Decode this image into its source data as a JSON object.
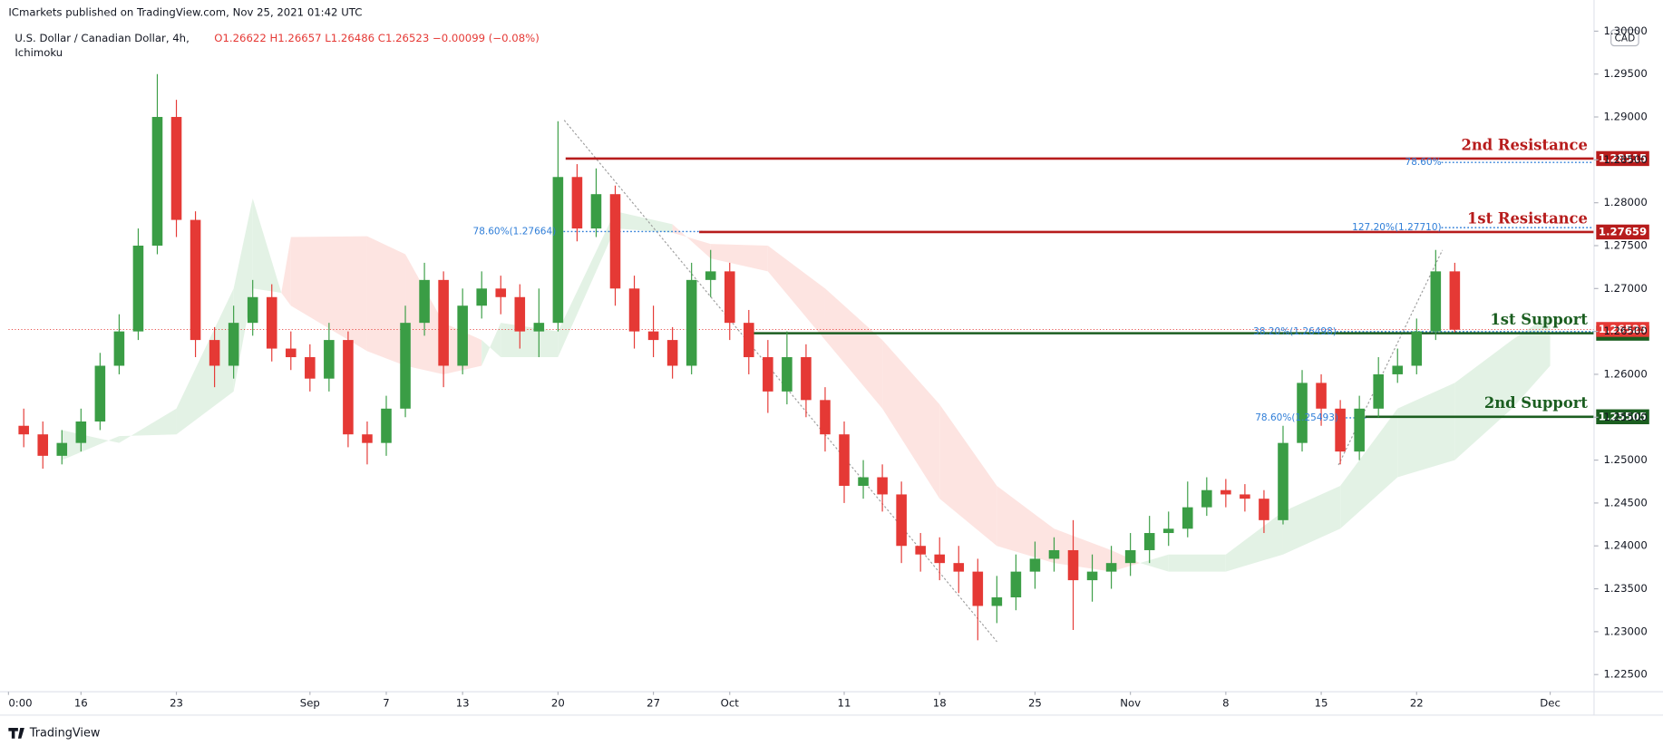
{
  "header": {
    "publisher": "ICmarkets published on TradingView.com, Nov 25, 2021 01:42 UTC",
    "symbol": "U.S. Dollar / Canadian Dollar, 4h,",
    "indicator": "Ichimoku",
    "ohlc": "O1.26622 H1.26657 L1.26486 C1.26523 −0.00099 (−0.08%)",
    "currency": "CAD"
  },
  "footer": {
    "brand": "TradingView"
  },
  "chart_data": {
    "type": "candlestick",
    "up_color": "#3a9d45",
    "down_color": "#e53935",
    "x": [
      -3,
      -2,
      -1,
      0,
      1,
      2,
      3,
      4,
      5,
      6,
      7,
      8,
      9,
      10,
      11,
      12,
      13,
      14,
      15,
      16,
      17,
      18,
      19,
      20,
      21,
      22,
      23,
      24,
      25,
      26,
      27,
      28,
      29,
      30,
      31,
      32,
      33,
      34,
      35,
      36,
      37,
      38,
      39,
      40,
      41,
      42,
      43,
      44,
      45,
      46,
      47,
      48,
      49,
      50,
      51,
      52,
      53,
      54,
      55,
      56,
      57,
      58,
      59,
      60,
      61,
      62,
      63,
      64,
      65,
      66,
      67,
      68,
      69,
      70,
      71,
      72
    ],
    "open": [
      1.254,
      1.253,
      1.2505,
      1.252,
      1.2545,
      1.261,
      1.265,
      1.275,
      1.29,
      1.278,
      1.264,
      1.261,
      1.266,
      1.269,
      1.263,
      1.262,
      1.2595,
      1.264,
      1.253,
      1.252,
      1.256,
      1.266,
      1.271,
      1.261,
      1.268,
      1.27,
      1.269,
      1.265,
      1.266,
      1.283,
      1.277,
      1.281,
      1.27,
      1.265,
      1.264,
      1.261,
      1.271,
      1.272,
      1.266,
      1.262,
      1.258,
      1.262,
      1.257,
      1.253,
      1.247,
      1.248,
      1.246,
      1.24,
      1.239,
      1.238,
      1.237,
      1.233,
      1.234,
      1.237,
      1.2385,
      1.2395,
      1.236,
      1.237,
      1.238,
      1.2395,
      1.2415,
      1.242,
      1.2445,
      1.2465,
      1.246,
      1.2455,
      1.243,
      1.252,
      1.259,
      1.256,
      1.251,
      1.256,
      1.26,
      1.261,
      1.265,
      1.272
    ],
    "high": [
      1.256,
      1.2545,
      1.2535,
      1.256,
      1.2625,
      1.267,
      1.277,
      1.295,
      1.292,
      1.279,
      1.2655,
      1.268,
      1.271,
      1.2705,
      1.265,
      1.2635,
      1.266,
      1.265,
      1.2545,
      1.2575,
      1.268,
      1.273,
      1.272,
      1.27,
      1.272,
      1.2715,
      1.2705,
      1.27,
      1.2895,
      1.2845,
      1.284,
      1.282,
      1.2715,
      1.268,
      1.2655,
      1.273,
      1.2745,
      1.273,
      1.2675,
      1.264,
      1.265,
      1.2635,
      1.2585,
      1.2545,
      1.25,
      1.2495,
      1.2475,
      1.2415,
      1.241,
      1.24,
      1.2385,
      1.2365,
      1.239,
      1.2405,
      1.241,
      1.243,
      1.239,
      1.24,
      1.2415,
      1.2435,
      1.244,
      1.2475,
      1.248,
      1.2478,
      1.2472,
      1.2465,
      1.254,
      1.2605,
      1.26,
      1.257,
      1.2575,
      1.262,
      1.263,
      1.2665,
      1.2745,
      1.273
    ],
    "low": [
      1.2515,
      1.249,
      1.2495,
      1.251,
      1.2535,
      1.26,
      1.264,
      1.274,
      1.276,
      1.262,
      1.2585,
      1.2595,
      1.2645,
      1.2615,
      1.2605,
      1.258,
      1.258,
      1.2515,
      1.2495,
      1.2505,
      1.255,
      1.2645,
      1.2585,
      1.26,
      1.2665,
      1.267,
      1.263,
      1.262,
      1.265,
      1.2755,
      1.276,
      1.268,
      1.263,
      1.262,
      1.2595,
      1.26,
      1.269,
      1.264,
      1.26,
      1.2555,
      1.2565,
      1.255,
      1.251,
      1.245,
      1.2455,
      1.244,
      1.238,
      1.237,
      1.236,
      1.2345,
      1.229,
      1.231,
      1.2325,
      1.235,
      1.237,
      1.2302,
      1.2335,
      1.235,
      1.2365,
      1.238,
      1.24,
      1.241,
      1.2435,
      1.2445,
      1.244,
      1.2415,
      1.2425,
      1.251,
      1.254,
      1.2495,
      1.25,
      1.255,
      1.259,
      1.26,
      1.264,
      1.2649
    ],
    "close": [
      1.253,
      1.2505,
      1.252,
      1.2545,
      1.261,
      1.265,
      1.275,
      1.29,
      1.278,
      1.264,
      1.261,
      1.266,
      1.269,
      1.263,
      1.262,
      1.2595,
      1.264,
      1.253,
      1.252,
      1.256,
      1.266,
      1.271,
      1.261,
      1.268,
      1.27,
      1.269,
      1.265,
      1.266,
      1.283,
      1.277,
      1.281,
      1.27,
      1.265,
      1.264,
      1.261,
      1.271,
      1.272,
      1.266,
      1.262,
      1.258,
      1.262,
      1.257,
      1.253,
      1.247,
      1.248,
      1.246,
      1.24,
      1.239,
      1.238,
      1.237,
      1.233,
      1.234,
      1.237,
      1.2385,
      1.2395,
      1.236,
      1.237,
      1.238,
      1.2395,
      1.2415,
      1.242,
      1.2445,
      1.2465,
      1.246,
      1.2455,
      1.243,
      1.252,
      1.259,
      1.256,
      1.251,
      1.256,
      1.26,
      1.261,
      1.265,
      1.272,
      1.2652
    ],
    "cloud": {
      "bull_color": "#e3f2e5",
      "bear_color": "#fde4e1",
      "x": [
        -1,
        2,
        5,
        8,
        9,
        10.5,
        11,
        15,
        17,
        19,
        21,
        22,
        25,
        28,
        31,
        33,
        36,
        39,
        42,
        45,
        48,
        51,
        54,
        55.5,
        57,
        60,
        63,
        66,
        69,
        72,
        75,
        77
      ],
      "span_a": [
        1.2535,
        1.252,
        1.256,
        1.27,
        1.2805,
        1.2695,
        1.268,
        1.2627,
        1.261,
        1.26,
        1.261,
        1.266,
        1.265,
        1.279,
        1.2775,
        1.2735,
        1.272,
        1.264,
        1.256,
        1.2455,
        1.24,
        1.238,
        1.237,
        1.238,
        1.239,
        1.239,
        1.244,
        1.247,
        1.256,
        1.259,
        1.264,
        1.267
      ],
      "span_b": [
        1.25,
        1.2528,
        1.253,
        1.258,
        1.27,
        1.2695,
        1.276,
        1.2761,
        1.274,
        1.266,
        1.264,
        1.262,
        1.262,
        1.277,
        1.2765,
        1.2752,
        1.275,
        1.27,
        1.264,
        1.2565,
        1.247,
        1.242,
        1.2395,
        1.238,
        1.237,
        1.237,
        1.239,
        1.242,
        1.248,
        1.25,
        1.256,
        1.261
      ]
    },
    "levels": [
      {
        "label": "2nd Resistance",
        "value": 1.28515,
        "color": "#b71c1c",
        "x_start": 25.4
      },
      {
        "label": "1st Resistance",
        "value": 1.27659,
        "color": "#b71c1c",
        "x_start": 32.4
      },
      {
        "label": "1st Support",
        "value": 1.26479,
        "color": "#1b5e20",
        "x_start": 35.0
      },
      {
        "label": "2nd Support",
        "value": 1.25505,
        "color": "#1b5e20",
        "x_start": 67.3
      }
    ],
    "last_price": {
      "value": 1.26523,
      "color": "#e53935"
    },
    "fibs": [
      {
        "label": "78.60%(1.27664)",
        "price": 1.27664,
        "x_start": 24.9,
        "x_end": 32.7
      },
      {
        "label": "78.60%",
        "price": 1.2847,
        "x_start": 71.3,
        "x_end": 79.3
      },
      {
        "label": "127.20%(1.27710)",
        "price": 1.2771,
        "x_start": 71.3,
        "x_end": 79.3
      },
      {
        "label": "38.20%(1.26498)",
        "price": 1.26498,
        "x_start": 65.8,
        "x_end": 79.3
      },
      {
        "label": "78.60%(1.25493)",
        "price": 1.25493,
        "x_start": 65.9,
        "x_end": 67.4
      }
    ],
    "xlim": [
      -3.8,
      79.3
    ],
    "ylim": [
      1.223,
      1.3014
    ],
    "xticks": [
      {
        "value": -3.8,
        "label": "0:00"
      },
      {
        "value": 0,
        "label": "16"
      },
      {
        "value": 5,
        "label": "23"
      },
      {
        "value": 12,
        "label": "Sep"
      },
      {
        "value": 16,
        "label": "7"
      },
      {
        "value": 20,
        "label": "13"
      },
      {
        "value": 25,
        "label": "20"
      },
      {
        "value": 30,
        "label": "27"
      },
      {
        "value": 34,
        "label": "Oct"
      },
      {
        "value": 40,
        "label": "11"
      },
      {
        "value": 45,
        "label": "18"
      },
      {
        "value": 50,
        "label": "25"
      },
      {
        "value": 55,
        "label": "Nov"
      },
      {
        "value": 60,
        "label": "8"
      },
      {
        "value": 65,
        "label": "15"
      },
      {
        "value": 70,
        "label": "22"
      },
      {
        "value": 77,
        "label": "Dec"
      }
    ],
    "yticks": [
      {
        "value": 1.225,
        "label": "1.22500"
      },
      {
        "value": 1.23,
        "label": "1.23000"
      },
      {
        "value": 1.235,
        "label": "1.23500"
      },
      {
        "value": 1.24,
        "label": "1.24000"
      },
      {
        "value": 1.245,
        "label": "1.24500"
      },
      {
        "value": 1.25,
        "label": "1.25000"
      },
      {
        "value": 1.255,
        "label": "1.25500"
      },
      {
        "value": 1.26,
        "label": "1.26000"
      },
      {
        "value": 1.265,
        "label": "1.26500"
      },
      {
        "value": 1.27,
        "label": "1.27000"
      },
      {
        "value": 1.275,
        "label": "1.27500"
      },
      {
        "value": 1.28,
        "label": "1.28000"
      },
      {
        "value": 1.285,
        "label": "1.28500"
      },
      {
        "value": 1.29,
        "label": "1.29000"
      },
      {
        "value": 1.295,
        "label": "1.29500"
      },
      {
        "value": 1.3,
        "label": "1.30000"
      }
    ]
  }
}
